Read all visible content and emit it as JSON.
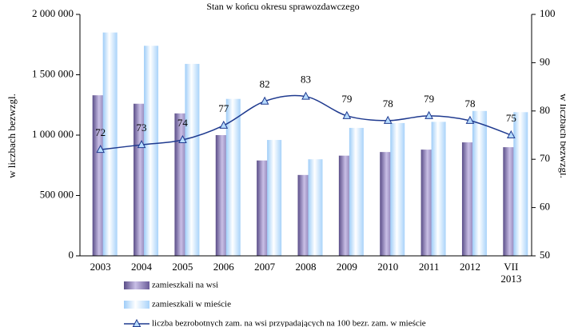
{
  "chart_data": {
    "type": "bar",
    "title": "Stan w końcu okresu sprawozdawczego",
    "y_label": "w liczbach bezwzgl.",
    "y2_label": "w liczbach bezwzgl.",
    "categories": [
      "2003",
      "2004",
      "2005",
      "2006",
      "2007",
      "2008",
      "2009",
      "2010",
      "2011",
      "2012",
      "VII 2013"
    ],
    "series": [
      {
        "name": "zamieszkali na wsi",
        "type": "bar",
        "color": "#8577b0",
        "values": [
          1330000,
          1260000,
          1180000,
          1000000,
          790000,
          670000,
          830000,
          860000,
          880000,
          940000,
          900000
        ]
      },
      {
        "name": "zamieszkali w mieście",
        "type": "bar",
        "color": "#c6e2ff",
        "values": [
          1850000,
          1740000,
          1590000,
          1300000,
          960000,
          800000,
          1060000,
          1100000,
          1110000,
          1200000,
          1190000
        ]
      },
      {
        "name": "liczba bezrobotnych zam. na wsi przypadających na 100 bezr. zam. w mieście",
        "type": "line",
        "axis": "y2",
        "color": "#1f3a8f",
        "values": [
          72,
          73,
          74,
          77,
          82,
          83,
          79,
          78,
          79,
          78,
          75
        ]
      }
    ],
    "ylim": [
      0,
      2000000
    ],
    "yticks": [
      0,
      {
        "value": 500000,
        "label": "500 000"
      },
      {
        "value": 1000000,
        "label": "1 000 000"
      },
      {
        "value": 1500000,
        "label": "1 500 000"
      },
      {
        "value": 2000000,
        "label": "2 000 000"
      }
    ],
    "y2lim": [
      50,
      100
    ],
    "y2ticks": [
      50,
      60,
      70,
      80,
      90,
      100
    ],
    "legend": "bottom-left"
  }
}
